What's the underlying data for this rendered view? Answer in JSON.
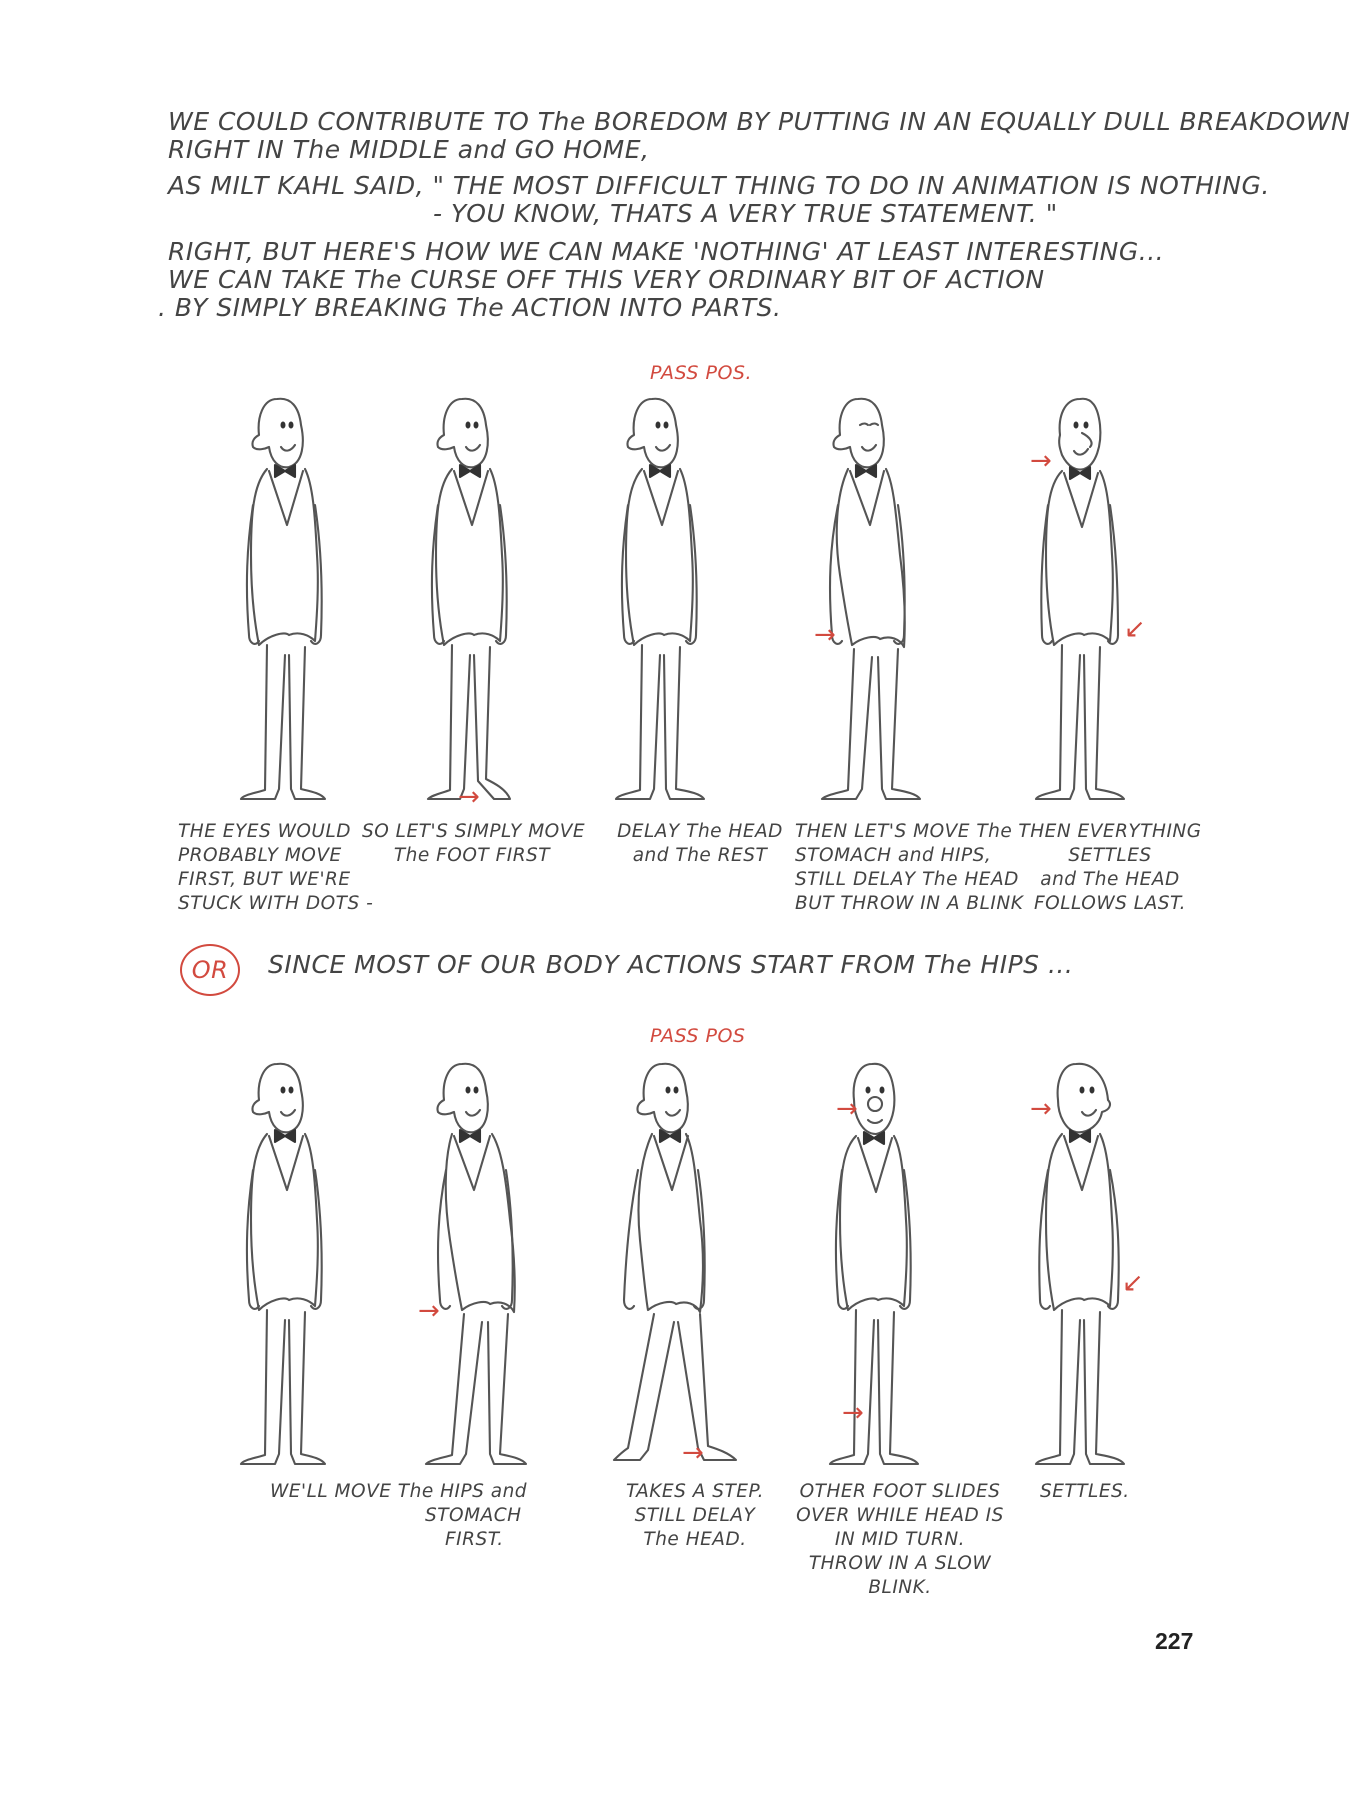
{
  "intro": {
    "line1": "WE COULD CONTRIBUTE TO The BOREDOM BY PUTTING IN AN EQUALLY DULL BREAKDOWN",
    "line2": "RIGHT IN The MIDDLE and GO HOME,",
    "line3": "AS MILT KAHL SAID, \" THE MOST DIFFICULT THING TO DO IN ANIMATION IS NOTHING.",
    "line4": "- YOU KNOW, THATS A VERY TRUE STATEMENT. \"",
    "line5": "RIGHT, BUT HERE'S HOW WE CAN MAKE 'NOTHING' AT LEAST INTERESTING...",
    "line6": "WE CAN TAKE The CURSE OFF THIS VERY ORDINARY BIT OF ACTION",
    "line7": ". BY SIMPLY BREAKING The ACTION INTO PARTS."
  },
  "row1": {
    "pass_label": "PASS POS.",
    "captions": [
      [
        "THE EYES WOULD",
        "PROBABLY MOVE",
        "FIRST, BUT WE'RE",
        "STUCK WITH DOTS -"
      ],
      [
        "SO LET'S SIMPLY MOVE",
        "The FOOT FIRST"
      ],
      [
        "DELAY The HEAD",
        "and The REST"
      ],
      [
        "THEN LET'S MOVE The",
        "STOMACH and HIPS,",
        "STILL DELAY The HEAD",
        "BUT THROW IN A BLINK"
      ],
      [
        "THEN EVERYTHING",
        "SETTLES",
        "and The HEAD",
        "FOLLOWS LAST."
      ]
    ]
  },
  "or_label": "OR",
  "or_text": "SINCE MOST OF OUR BODY ACTIONS START FROM The HIPS ...",
  "row2": {
    "pass_label": "PASS POS",
    "captions": [
      [
        "WE'LL MOVE The HIPS and",
        "STOMACH",
        "FIRST."
      ],
      [
        "TAKES A STEP.",
        "STILL DELAY",
        "The HEAD."
      ],
      [
        "OTHER FOOT SLIDES",
        "OVER WHILE HEAD IS",
        "IN MID TURN.",
        "THROW IN A SLOW",
        "BLINK."
      ],
      [
        "SETTLES."
      ]
    ]
  },
  "page_number": "227",
  "colors": {
    "accent_red": "#d24a3f",
    "pencil": "#555555"
  },
  "icons": {
    "arrow": "right-arrow-icon"
  }
}
